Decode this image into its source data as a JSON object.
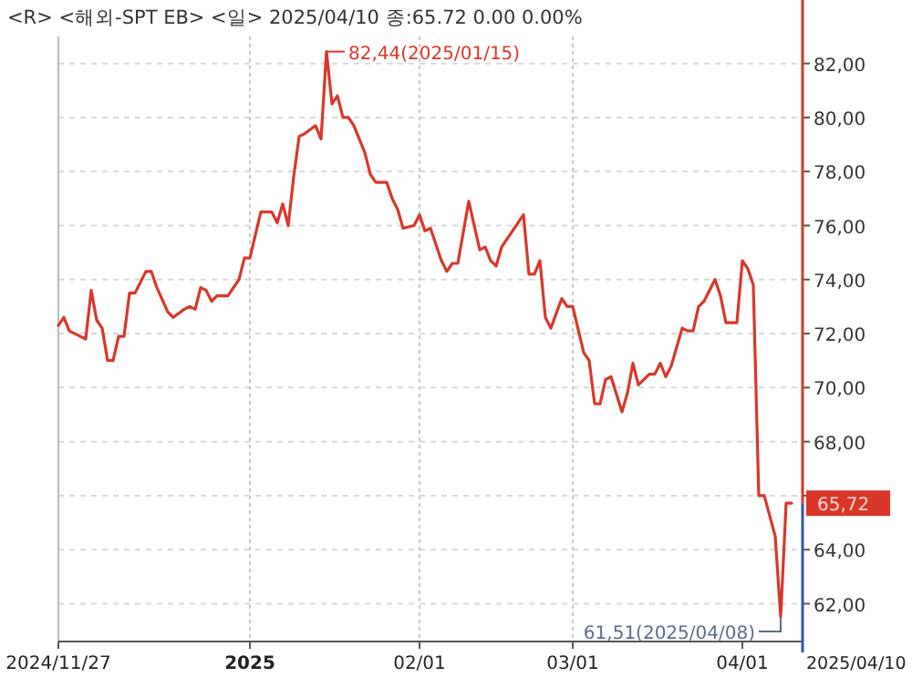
{
  "chart_data": {
    "type": "line",
    "title": "<R> <해외-SPT EB> <일> 2025/04/10 종:65.72 0.00 0.00%",
    "x": [
      "2024-11-27",
      "2024-11-28",
      "2024-11-29",
      "2024-11-30",
      "2024-12-02",
      "2024-12-03",
      "2024-12-04",
      "2024-12-05",
      "2024-12-06",
      "2024-12-07",
      "2024-12-08",
      "2024-12-09",
      "2024-12-10",
      "2024-12-11",
      "2024-12-13",
      "2024-12-14",
      "2024-12-15",
      "2024-12-17",
      "2024-12-18",
      "2024-12-20",
      "2024-12-21",
      "2024-12-22",
      "2024-12-23",
      "2024-12-24",
      "2024-12-25",
      "2024-12-26",
      "2024-12-28",
      "2024-12-30",
      "2024-12-31",
      "2025-01-01",
      "2025-01-03",
      "2025-01-05",
      "2025-01-06",
      "2025-01-07",
      "2025-01-08",
      "2025-01-09",
      "2025-01-10",
      "2025-01-11",
      "2025-01-13",
      "2025-01-14",
      "2025-01-15",
      "2025-01-16",
      "2025-01-17",
      "2025-01-18",
      "2025-01-19",
      "2025-01-20",
      "2025-01-22",
      "2025-01-23",
      "2025-01-24",
      "2025-01-26",
      "2025-01-27",
      "2025-01-28",
      "2025-01-29",
      "2025-01-31",
      "2025-02-01",
      "2025-02-02",
      "2025-02-03",
      "2025-02-05",
      "2025-02-06",
      "2025-02-07",
      "2025-02-08",
      "2025-02-10",
      "2025-02-12",
      "2025-02-13",
      "2025-02-14",
      "2025-02-15",
      "2025-02-16",
      "2025-02-20",
      "2025-02-21",
      "2025-02-22",
      "2025-02-23",
      "2025-02-24",
      "2025-02-25",
      "2025-02-27",
      "2025-02-28",
      "2025-03-01",
      "2025-03-03",
      "2025-03-04",
      "2025-03-05",
      "2025-03-06",
      "2025-03-07",
      "2025-03-08",
      "2025-03-10",
      "2025-03-11",
      "2025-03-12",
      "2025-03-13",
      "2025-03-15",
      "2025-03-16",
      "2025-03-17",
      "2025-03-18",
      "2025-03-19",
      "2025-03-21",
      "2025-03-22",
      "2025-03-23",
      "2025-03-24",
      "2025-03-25",
      "2025-03-27",
      "2025-03-28",
      "2025-03-29",
      "2025-03-31",
      "2025-04-01",
      "2025-04-02",
      "2025-04-03",
      "2025-04-04",
      "2025-04-05",
      "2025-04-07",
      "2025-04-08",
      "2025-04-09",
      "2025-04-10"
    ],
    "series": [
      {
        "color": "#d9372a",
        "values": [
          72.3,
          72.6,
          72.1,
          72.0,
          71.8,
          73.6,
          72.5,
          72.2,
          71.0,
          71.0,
          71.9,
          71.9,
          73.5,
          73.5,
          74.3,
          74.3,
          73.7,
          72.8,
          72.6,
          72.9,
          73.0,
          72.9,
          73.7,
          73.6,
          73.2,
          73.4,
          73.4,
          74.0,
          74.8,
          74.8,
          76.5,
          76.5,
          76.1,
          76.8,
          76.0,
          77.8,
          79.3,
          79.4,
          79.7,
          79.2,
          82.44,
          80.5,
          80.8,
          80.0,
          80.0,
          79.7,
          78.7,
          77.9,
          77.6,
          77.6,
          77.0,
          76.6,
          75.9,
          76.0,
          76.4,
          75.8,
          75.9,
          74.7,
          74.3,
          74.6,
          74.6,
          76.9,
          75.1,
          75.2,
          74.7,
          74.5,
          75.2,
          76.4,
          74.2,
          74.2,
          74.7,
          72.6,
          72.2,
          73.3,
          73.0,
          73.0,
          71.3,
          71.0,
          69.4,
          69.4,
          70.3,
          70.4,
          69.1,
          69.8,
          70.9,
          70.1,
          70.5,
          70.5,
          70.9,
          70.4,
          70.8,
          72.2,
          72.1,
          72.1,
          73.0,
          73.2,
          74.0,
          73.4,
          72.4,
          72.4,
          74.7,
          74.4,
          73.8,
          66.0,
          66.0,
          64.5,
          61.51,
          65.72,
          65.72
        ]
      }
    ],
    "xlim": [
      "2024-11-27",
      "2025-04-12"
    ],
    "xticks": [
      {
        "value": "2024-11-27",
        "label": "2024/11/27"
      },
      {
        "value": "2025-01-01",
        "label": "2025"
      },
      {
        "value": "2025-02-01",
        "label": "02/01"
      },
      {
        "value": "2025-03-01",
        "label": "03/01"
      },
      {
        "value": "2025-04-01",
        "label": "04/01"
      }
    ],
    "ylim": [
      60.6,
      83.0
    ],
    "yticks": [
      {
        "value": 62,
        "label": "62,00"
      },
      {
        "value": 64,
        "label": "64,00"
      },
      {
        "value": 66,
        "label": null
      },
      {
        "value": 68,
        "label": "68,00"
      },
      {
        "value": 70,
        "label": "70,00"
      },
      {
        "value": 72,
        "label": "72,00"
      },
      {
        "value": 74,
        "label": "74,00"
      },
      {
        "value": 76,
        "label": "76,00"
      },
      {
        "value": 78,
        "label": "78,00"
      },
      {
        "value": 80,
        "label": "80,00"
      },
      {
        "value": 82,
        "label": "82,00"
      }
    ],
    "grid": true,
    "annotations": [
      {
        "text": "82,44(2025/01/15)",
        "x": "2025-01-15",
        "y": 82.44
      },
      {
        "text": "61,51(2025/04/08)",
        "x": "2025-04-08",
        "y": 61.51
      },
      {
        "text": "65,72",
        "x": "2025-04-10",
        "y": 65.72
      },
      "2025/04/10"
    ]
  }
}
